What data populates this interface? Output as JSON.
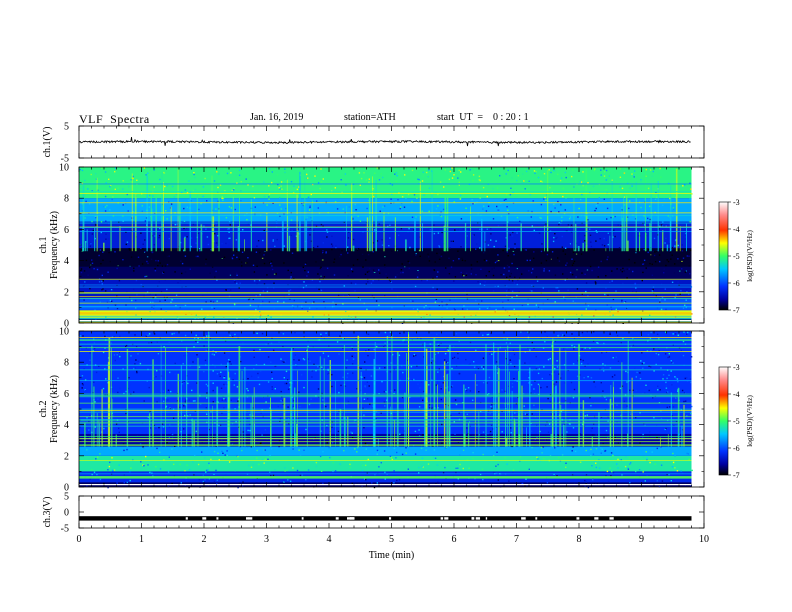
{
  "header": {
    "title": "VLF  Spectra",
    "date": "Jan. 16, 2019",
    "station": "station=ATH",
    "start_ut": "start  UT  =    0 : 20 : 1"
  },
  "chart_data": [
    {
      "type": "line",
      "panel": "ch.1",
      "ylabel": "ch.1(V)",
      "yticks": [
        "5",
        "-5"
      ],
      "ylim": [
        -5,
        5
      ],
      "xlim": [
        0,
        10
      ],
      "series": [
        {
          "values_description": "noisy trace near 0 V",
          "mean": 0.0,
          "amplitude": 0.6,
          "end_time": 9.8
        }
      ]
    },
    {
      "type": "heatmap",
      "panel": "ch.1",
      "ylabel_lines": [
        "ch.1",
        "Frequency (kHz)"
      ],
      "yticks": [
        "0",
        "2",
        "4",
        "6",
        "8",
        "10"
      ],
      "ylim": [
        0,
        10
      ],
      "xlim": [
        0,
        10
      ],
      "data_end_time": 9.8,
      "colorbar": {
        "label": "log(PSD)(V²/Hz)",
        "ticks": [
          "-3",
          "-4",
          "-5",
          "-6",
          "-7"
        ],
        "range": [
          -7,
          -3
        ]
      },
      "bands": [
        {
          "f0": 0.0,
          "f1": 0.3,
          "level": -6.8
        },
        {
          "f0": 0.3,
          "f1": 0.8,
          "level": -4.6
        },
        {
          "f0": 0.8,
          "f1": 1.6,
          "level": -5.9
        },
        {
          "f0": 1.6,
          "f1": 2.8,
          "level": -6.3
        },
        {
          "f0": 2.8,
          "f1": 3.6,
          "level": -6.7
        },
        {
          "f0": 3.6,
          "f1": 4.8,
          "level": -6.85
        },
        {
          "f0": 4.8,
          "f1": 6.5,
          "level": -6.2
        },
        {
          "f0": 6.5,
          "f1": 8.0,
          "level": -5.6
        },
        {
          "f0": 8.0,
          "f1": 10.0,
          "level": -5.1
        }
      ]
    },
    {
      "type": "heatmap",
      "panel": "ch.2",
      "ylabel_lines": [
        "ch.2",
        "Frequency (kHz)"
      ],
      "yticks": [
        "0",
        "2",
        "4",
        "6",
        "8",
        "10"
      ],
      "ylim": [
        0,
        10
      ],
      "xlim": [
        0,
        10
      ],
      "data_end_time": 9.8,
      "colorbar": {
        "label": "log(PSD)(V²/Hz)",
        "ticks": [
          "-3",
          "-4",
          "-5",
          "-6",
          "-7"
        ],
        "range": [
          -7,
          -3
        ]
      },
      "bands": [
        {
          "f0": 0.0,
          "f1": 0.3,
          "level": -6.7
        },
        {
          "f0": 0.3,
          "f1": 1.0,
          "level": -6.1
        },
        {
          "f0": 1.0,
          "f1": 2.0,
          "level": -5.2
        },
        {
          "f0": 2.0,
          "f1": 2.6,
          "level": -5.6
        },
        {
          "f0": 2.6,
          "f1": 3.4,
          "level": -6.5
        },
        {
          "f0": 3.4,
          "f1": 6.0,
          "level": -6.0
        },
        {
          "f0": 6.0,
          "f1": 10.0,
          "level": -6.0
        }
      ]
    },
    {
      "type": "line",
      "panel": "ch.3",
      "ylabel": "ch.3(V)",
      "yticks": [
        "5",
        "0",
        "-5"
      ],
      "ylim": [
        -5,
        5
      ],
      "xlim": [
        0,
        10
      ],
      "xlabel": "Time  (min)",
      "xticks": [
        "0",
        "1",
        "2",
        "3",
        "4",
        "5",
        "6",
        "7",
        "8",
        "9",
        "10"
      ],
      "series": [
        {
          "values_description": "thick trace near -2 V with small gaps",
          "mean": -2.0,
          "end_time": 9.8
        }
      ]
    }
  ],
  "colors": {
    "colormap": [
      "#000000",
      "#0000a0",
      "#0033ff",
      "#00c8ff",
      "#33ff66",
      "#ffff00",
      "#ff3300",
      "#ff8a8a",
      "#ffffff"
    ]
  }
}
